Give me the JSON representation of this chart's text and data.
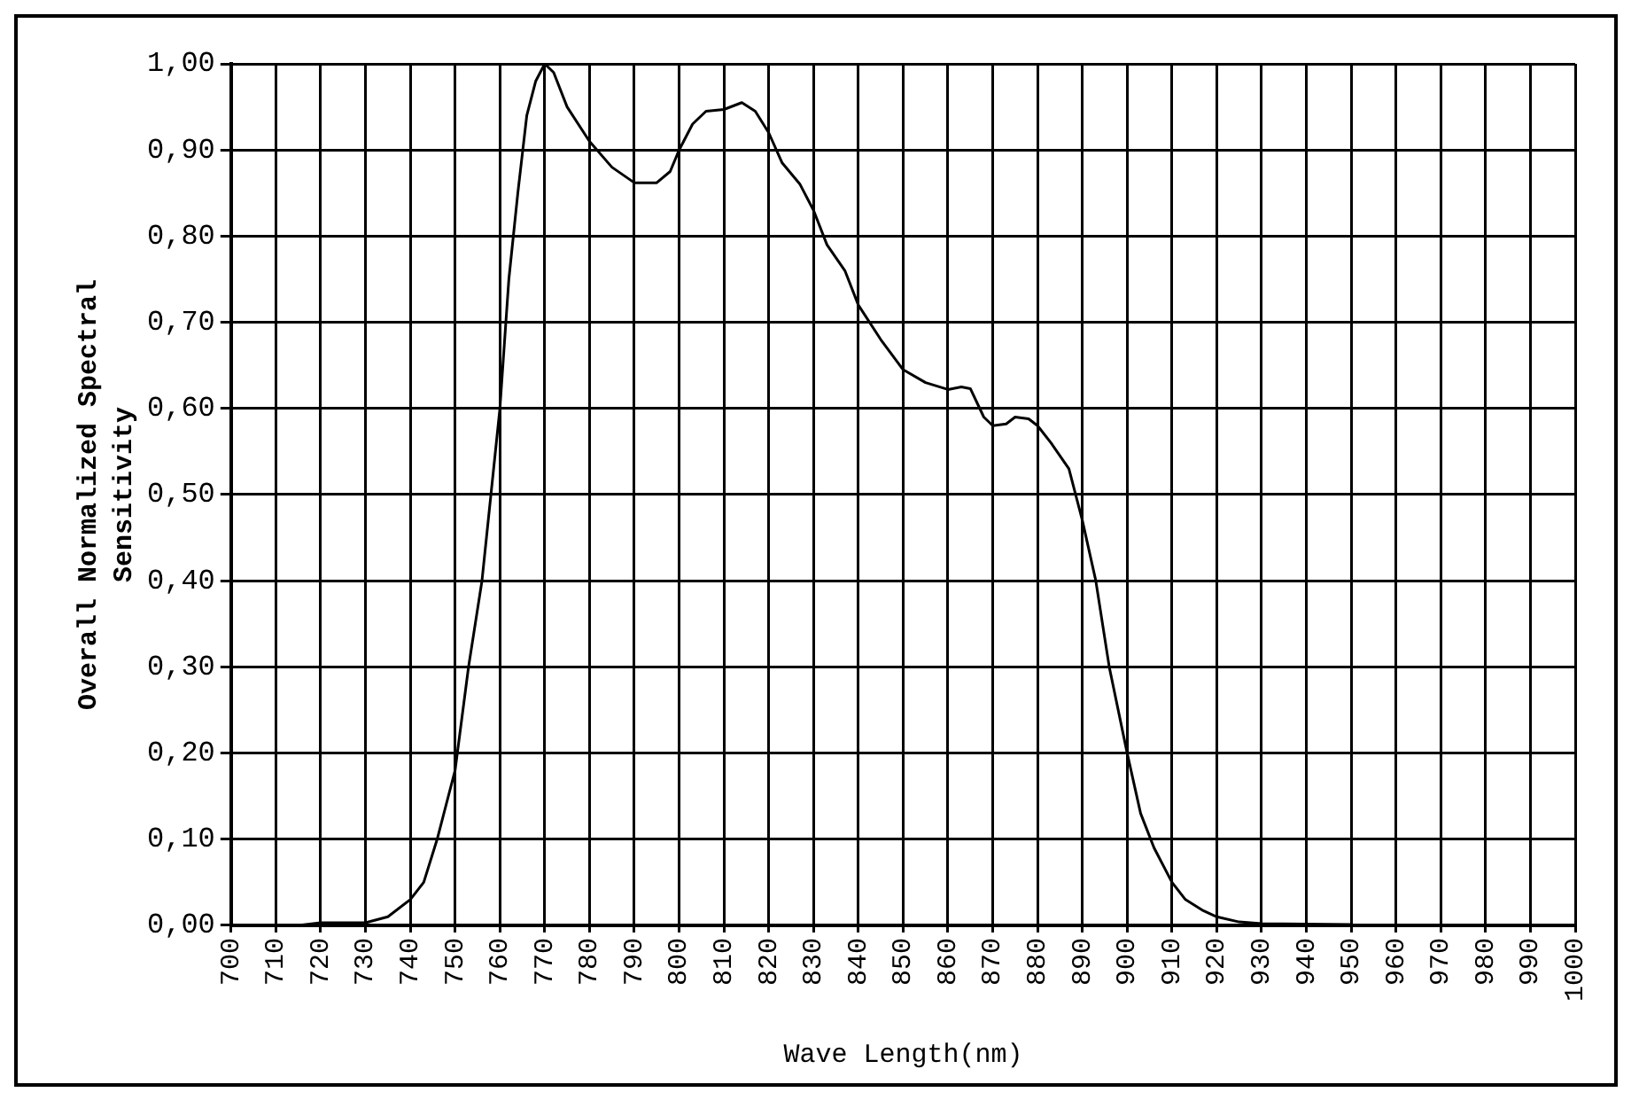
{
  "chart_data": {
    "type": "line",
    "xlabel": "Wave Length(nm)",
    "ylabel": "Overall Normalized Spectral Sensitivity",
    "xlim": [
      700,
      1000
    ],
    "xticks": [
      700,
      710,
      720,
      730,
      740,
      750,
      760,
      770,
      780,
      790,
      800,
      810,
      820,
      830,
      840,
      850,
      860,
      870,
      880,
      890,
      900,
      910,
      920,
      930,
      940,
      950,
      960,
      970,
      980,
      990,
      1000
    ],
    "ylim": [
      0,
      1
    ],
    "yticks": [
      {
        "value": 0,
        "label": "0,00"
      },
      {
        "value": 0.1,
        "label": "0,10"
      },
      {
        "value": 0.2,
        "label": "0,20"
      },
      {
        "value": 0.3,
        "label": "0,30"
      },
      {
        "value": 0.4,
        "label": "0,40"
      },
      {
        "value": 0.5,
        "label": "0,50"
      },
      {
        "value": 0.6,
        "label": "0,60"
      },
      {
        "value": 0.7,
        "label": "0,70"
      },
      {
        "value": 0.8,
        "label": "0,80"
      },
      {
        "value": 0.9,
        "label": "0,90"
      },
      {
        "value": 1,
        "label": "1,00"
      }
    ],
    "grid": true,
    "legend": false,
    "marker": "none",
    "line_style": "solid",
    "series": [
      {
        "color": "#000000",
        "x": [
          715,
          720,
          730,
          735,
          740,
          743,
          746,
          750,
          753,
          756,
          760,
          762,
          764,
          766,
          768,
          770,
          772,
          775,
          780,
          785,
          790,
          795,
          798,
          800,
          803,
          806,
          810,
          814,
          817,
          820,
          823,
          827,
          830,
          833,
          837,
          840,
          845,
          850,
          855,
          860,
          863,
          865,
          868,
          870,
          873,
          875,
          878,
          880,
          883,
          887,
          890,
          893,
          896,
          900,
          903,
          906,
          910,
          913,
          917,
          920,
          925,
          930,
          950
        ],
        "values": [
          0,
          0.003,
          0.003,
          0.01,
          0.03,
          0.05,
          0.1,
          0.18,
          0.3,
          0.4,
          0.6,
          0.75,
          0.85,
          0.94,
          0.98,
          1.0,
          0.99,
          0.95,
          0.91,
          0.88,
          0.862,
          0.862,
          0.875,
          0.9,
          0.93,
          0.945,
          0.947,
          0.955,
          0.945,
          0.92,
          0.885,
          0.86,
          0.83,
          0.79,
          0.76,
          0.72,
          0.68,
          0.645,
          0.63,
          0.622,
          0.625,
          0.623,
          0.59,
          0.58,
          0.582,
          0.59,
          0.588,
          0.58,
          0.56,
          0.53,
          0.47,
          0.4,
          0.3,
          0.2,
          0.13,
          0.09,
          0.05,
          0.03,
          0.017,
          0.01,
          0.004,
          0.002,
          0.001
        ]
      }
    ]
  }
}
